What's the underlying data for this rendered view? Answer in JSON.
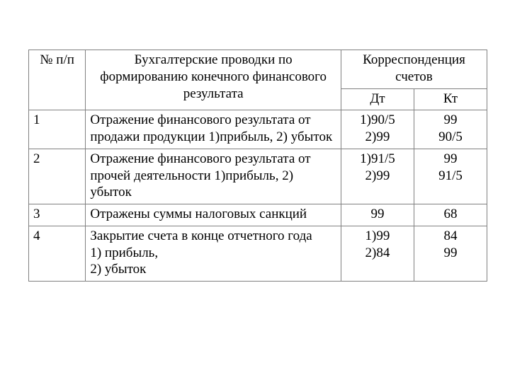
{
  "table": {
    "header": {
      "num": "№ п/п",
      "desc": "Бухгалтерские проводки по формированию конечного финансового результата",
      "corr": "Корреспонденция счетов",
      "dt": "Дт",
      "kt": "Кт"
    },
    "rows": [
      {
        "num": "1",
        "desc": "Отражение финансового результата от продажи продукции 1)прибыль, 2) убыток",
        "dt": "1)90/5\n2)99",
        "kt": "99\n90/5"
      },
      {
        "num": "2",
        "desc": "Отражение финансового результата  от прочей деятельности 1)прибыль, 2) убыток",
        "dt": "1)91/5\n2)99",
        "kt": "99\n91/5"
      },
      {
        "num": "3",
        "desc": "Отражены суммы налоговых санкций",
        "dt": "99",
        "kt": "68"
      },
      {
        "num": "4",
        "desc": "Закрытие счета в конце отчетного года\n1) прибыль,\n2) убыток",
        "dt": "1)99\n2)84",
        "kt": "84\n99"
      }
    ],
    "colors": {
      "border": "#808080",
      "text": "#000000",
      "background": "#ffffff"
    },
    "typography": {
      "font_family": "Times New Roman",
      "font_size_pt": 14
    }
  }
}
